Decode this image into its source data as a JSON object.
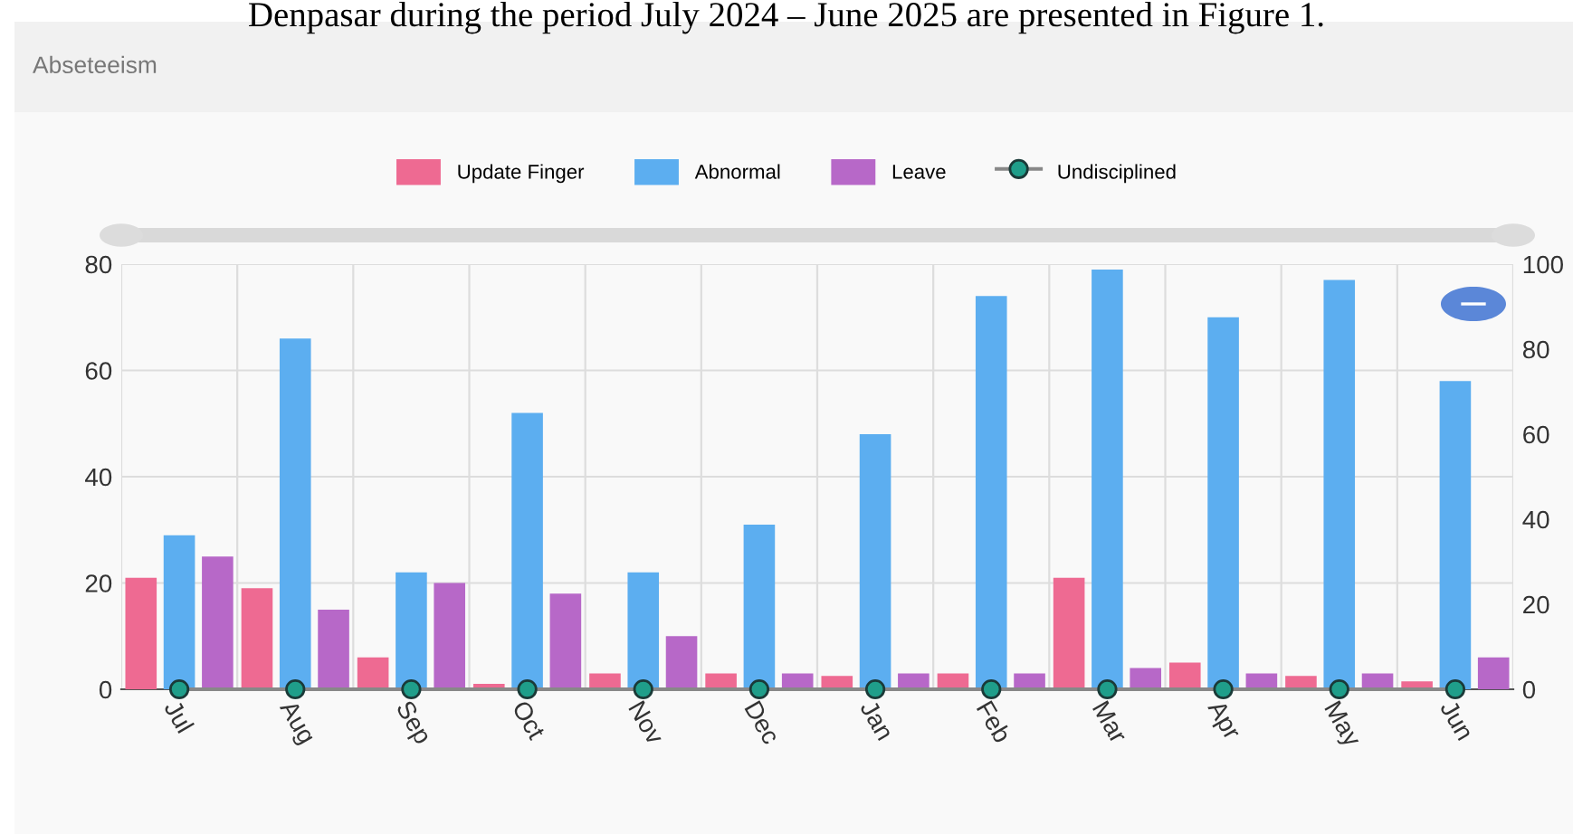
{
  "chart_data": {
    "type": "bar",
    "title": "Abseteeism",
    "annotations": [
      "Denpasar during the period July 2024 – June 2025 are presented in Figure 1."
    ],
    "categories": [
      "Jul",
      "Aug",
      "Sep",
      "Oct",
      "Nov",
      "Dec",
      "Jan",
      "Feb",
      "Mar",
      "Apr",
      "May",
      "Jun"
    ],
    "series": [
      {
        "name": "Update Finger",
        "color": "#ee6a92",
        "values": [
          21,
          19,
          6,
          1,
          3,
          3,
          2.5,
          3,
          21,
          5,
          2.5,
          1.5
        ]
      },
      {
        "name": "Abnormal",
        "color": "#5caef0",
        "values": [
          29,
          66,
          22,
          52,
          22,
          31,
          48,
          74,
          79,
          70,
          77,
          58
        ]
      },
      {
        "name": "Leave",
        "color": "#b768c8",
        "values": [
          25,
          15,
          20,
          18,
          10,
          3,
          3,
          3,
          4,
          3,
          3,
          6
        ]
      },
      {
        "name": "Undisciplined",
        "type": "line",
        "axis": "y2",
        "color": "#1f9e8a",
        "marker": "circle",
        "values": [
          0,
          0,
          0,
          0,
          0,
          0,
          0,
          0,
          0,
          0,
          0,
          0
        ]
      }
    ],
    "ylim": [
      0,
      80
    ],
    "yticks": [
      0,
      20,
      40,
      60,
      80
    ],
    "y2lim": [
      0,
      100
    ],
    "y2ticks": [
      0,
      20,
      40,
      60,
      80,
      100
    ],
    "grid": true,
    "legend": "top"
  }
}
